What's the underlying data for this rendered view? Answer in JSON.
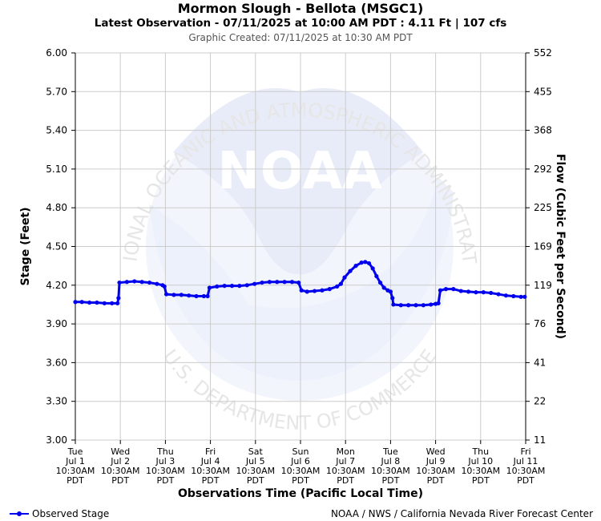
{
  "header": {
    "title": "Mormon Slough - Bellota (MSGC1)",
    "subtitle": "Latest Observation - 07/11/2025 at 10:00 AM PDT : 4.11 Ft | 107 cfs",
    "created": "Graphic Created: 07/11/2025 at 10:30 AM PDT"
  },
  "footer": {
    "legend_label": "Observed Stage",
    "credit": "NOAA / NWS / California Nevada River Forecast Center"
  },
  "watermark": {
    "logo_text": "NOAA",
    "ring_top": "NATIONAL OCEANIC AND ATMOSPHERIC ADMINISTRATION",
    "ring_bottom": "U.S. DEPARTMENT OF COMMERCE"
  },
  "colors": {
    "series": "#0000ee",
    "grid": "#cccccc",
    "watermark": "#e8ecf8"
  },
  "chart_data": {
    "type": "line",
    "title": "Mormon Slough - Bellota (MSGC1)",
    "ylabel": "Stage (Feet)",
    "y2label": "Flow (Cubic Feet per Second)",
    "xlabel": "Observations Time (Pacific Local Time)",
    "ylim": [
      3.0,
      6.0
    ],
    "y_ticks": [
      "6.00",
      "5.70",
      "5.40",
      "5.10",
      "4.80",
      "4.50",
      "4.20",
      "3.90",
      "3.60",
      "3.30",
      "3.00"
    ],
    "y2_ticks": [
      "552",
      "455",
      "368",
      "292",
      "225",
      "169",
      "119",
      "76",
      "41",
      "22",
      "11"
    ],
    "x_ticks": [
      [
        "Tue",
        "Jul 1",
        "10:30AM",
        "PDT"
      ],
      [
        "Wed",
        "Jul 2",
        "10:30AM",
        "PDT"
      ],
      [
        "Thu",
        "Jul 3",
        "10:30AM",
        "PDT"
      ],
      [
        "Fri",
        "Jul 4",
        "10:30AM",
        "PDT"
      ],
      [
        "Sat",
        "Jul 5",
        "10:30AM",
        "PDT"
      ],
      [
        "Sun",
        "Jul 6",
        "10:30AM",
        "PDT"
      ],
      [
        "Mon",
        "Jul 7",
        "10:30AM",
        "PDT"
      ],
      [
        "Tue",
        "Jul 8",
        "10:30AM",
        "PDT"
      ],
      [
        "Wed",
        "Jul 9",
        "10:30AM",
        "PDT"
      ],
      [
        "Thu",
        "Jul 10",
        "10:30AM",
        "PDT"
      ],
      [
        "Fri",
        "Jul 11",
        "10:30AM",
        "PDT"
      ]
    ],
    "grid": true,
    "legend": "bottom-left",
    "series": [
      {
        "name": "Observed Stage",
        "points": [
          [
            "Jul 1 10:30",
            4.07
          ],
          [
            "Jul 1 14:00",
            4.07
          ],
          [
            "Jul 1 18:00",
            4.065
          ],
          [
            "Jul 1 22:00",
            4.065
          ],
          [
            "Jul 2 02:00",
            4.06
          ],
          [
            "Jul 2 06:00",
            4.06
          ],
          [
            "Jul 2 09:00",
            4.06
          ],
          [
            "Jul 2 09:30",
            4.1
          ],
          [
            "Jul 2 10:00",
            4.22
          ],
          [
            "Jul 2 14:00",
            4.225
          ],
          [
            "Jul 2 18:00",
            4.23
          ],
          [
            "Jul 2 22:00",
            4.225
          ],
          [
            "Jul 3 02:00",
            4.22
          ],
          [
            "Jul 3 06:00",
            4.21
          ],
          [
            "Jul 3 09:00",
            4.2
          ],
          [
            "Jul 3 10:00",
            4.19
          ],
          [
            "Jul 3 11:00",
            4.13
          ],
          [
            "Jul 3 15:00",
            4.125
          ],
          [
            "Jul 3 19:00",
            4.125
          ],
          [
            "Jul 3 23:00",
            4.12
          ],
          [
            "Jul 4 03:00",
            4.115
          ],
          [
            "Jul 4 07:00",
            4.115
          ],
          [
            "Jul 4 09:00",
            4.115
          ],
          [
            "Jul 4 10:00",
            4.18
          ],
          [
            "Jul 4 14:00",
            4.19
          ],
          [
            "Jul 4 18:00",
            4.195
          ],
          [
            "Jul 4 22:00",
            4.195
          ],
          [
            "Jul 5 02:00",
            4.195
          ],
          [
            "Jul 5 06:00",
            4.2
          ],
          [
            "Jul 5 10:00",
            4.21
          ],
          [
            "Jul 5 14:00",
            4.22
          ],
          [
            "Jul 5 18:00",
            4.225
          ],
          [
            "Jul 5 22:00",
            4.225
          ],
          [
            "Jul 6 02:00",
            4.225
          ],
          [
            "Jul 6 06:00",
            4.225
          ],
          [
            "Jul 6 09:30",
            4.22
          ],
          [
            "Jul 6 11:00",
            4.16
          ],
          [
            "Jul 6 14:00",
            4.15
          ],
          [
            "Jul 6 18:00",
            4.155
          ],
          [
            "Jul 6 22:00",
            4.16
          ],
          [
            "Jul 7 02:00",
            4.17
          ],
          [
            "Jul 7 06:00",
            4.19
          ],
          [
            "Jul 7 08:00",
            4.21
          ],
          [
            "Jul 7 10:00",
            4.26
          ],
          [
            "Jul 7 13:00",
            4.31
          ],
          [
            "Jul 7 16:00",
            4.35
          ],
          [
            "Jul 7 19:00",
            4.375
          ],
          [
            "Jul 7 21:00",
            4.38
          ],
          [
            "Jul 7 23:00",
            4.37
          ],
          [
            "Jul 8 01:00",
            4.33
          ],
          [
            "Jul 8 03:00",
            4.27
          ],
          [
            "Jul 8 05:00",
            4.22
          ],
          [
            "Jul 8 07:00",
            4.18
          ],
          [
            "Jul 8 09:00",
            4.16
          ],
          [
            "Jul 8 10:30",
            4.15
          ],
          [
            "Jul 8 11:30",
            4.1
          ],
          [
            "Jul 8 12:00",
            4.05
          ],
          [
            "Jul 8 16:00",
            4.045
          ],
          [
            "Jul 8 20:00",
            4.045
          ],
          [
            "Jul 9 00:00",
            4.045
          ],
          [
            "Jul 9 04:00",
            4.045
          ],
          [
            "Jul 9 08:00",
            4.05
          ],
          [
            "Jul 9 10:30",
            4.055
          ],
          [
            "Jul 9 12:00",
            4.06
          ],
          [
            "Jul 9 13:00",
            4.16
          ],
          [
            "Jul 9 16:00",
            4.17
          ],
          [
            "Jul 9 20:00",
            4.17
          ],
          [
            "Jul 10 00:00",
            4.155
          ],
          [
            "Jul 10 04:00",
            4.15
          ],
          [
            "Jul 10 08:00",
            4.145
          ],
          [
            "Jul 10 12:00",
            4.145
          ],
          [
            "Jul 10 16:00",
            4.14
          ],
          [
            "Jul 10 20:00",
            4.13
          ],
          [
            "Jul 11 00:00",
            4.12
          ],
          [
            "Jul 11 04:00",
            4.115
          ],
          [
            "Jul 11 08:00",
            4.11
          ],
          [
            "Jul 11 10:00",
            4.11
          ]
        ]
      }
    ]
  }
}
